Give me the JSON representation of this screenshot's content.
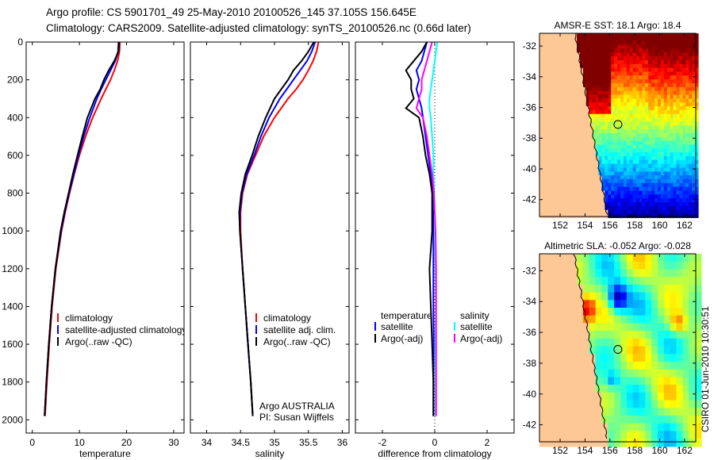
{
  "title_line1": "Argo profile: CS 5901701_49 25-May-2010 20100526_145 37.105S 156.645E",
  "title_line2": "Climatology: CARS2009. Satellite-adjusted climatology: synTS_20100526.nc (0.66d later)",
  "side_stamp": "CSIRO 01-Jun-2010 10:30:51",
  "colors": {
    "climatology": "#ff0000",
    "satellite": "#0000ff",
    "argo": "#000000",
    "sal_satellite": "#00ffff",
    "sal_argo": "#ff00ff",
    "land": "#fdc895"
  },
  "chart_data": [
    {
      "type": "line",
      "name": "temperature-profile",
      "xlabel": "temperature",
      "ylabel": "",
      "xlim": [
        -1.3,
        32.2
      ],
      "ylim": [
        2070,
        0
      ],
      "xticks": [
        0,
        10,
        20,
        30
      ],
      "yticks": [
        0,
        200,
        400,
        600,
        800,
        1000,
        1200,
        1400,
        1600,
        1800,
        2000
      ],
      "depth": [
        0,
        50,
        100,
        150,
        200,
        250,
        300,
        400,
        500,
        600,
        700,
        800,
        900,
        1000,
        1200,
        1400,
        1600,
        1800,
        1980
      ],
      "series": [
        {
          "name": "climatology",
          "color": "#ff0000",
          "values": [
            18.6,
            18.5,
            18.1,
            17.4,
            16.6,
            15.6,
            14.6,
            12.8,
            11.3,
            10.0,
            8.9,
            7.9,
            7.0,
            6.2,
            5.0,
            4.2,
            3.6,
            3.1,
            2.7
          ]
        },
        {
          "name": "satellite-adjusted climatology",
          "color": "#0000ff",
          "values": [
            18.3,
            18.2,
            17.6,
            16.6,
            15.6,
            14.6,
            13.7,
            12.2,
            10.9,
            9.8,
            8.8,
            7.8,
            6.9,
            6.1,
            4.9,
            4.1,
            3.5,
            3.0,
            2.6
          ]
        },
        {
          "name": "Argo(..raw -QC)",
          "color": "#000000",
          "values": [
            18.4,
            18.3,
            17.4,
            16.2,
            15.2,
            14.4,
            13.3,
            11.7,
            10.6,
            9.6,
            8.6,
            7.7,
            6.8,
            6.0,
            4.9,
            4.1,
            3.5,
            3.0,
            2.6
          ]
        }
      ],
      "legend": [
        "climatology",
        "satellite-adjusted climatology",
        "Argo(..raw -QC)"
      ]
    },
    {
      "type": "line",
      "name": "salinity-profile",
      "xlabel": "salinity",
      "xlim": [
        33.76,
        36.1
      ],
      "ylim": [
        2070,
        0
      ],
      "xticks": [
        34,
        34.5,
        35,
        35.5,
        36
      ],
      "depth": [
        0,
        50,
        100,
        150,
        200,
        250,
        300,
        400,
        500,
        600,
        700,
        800,
        900,
        1000,
        1200,
        1400,
        1600,
        1800,
        1980
      ],
      "series": [
        {
          "name": "climatology",
          "color": "#ff0000",
          "values": [
            35.65,
            35.62,
            35.57,
            35.5,
            35.42,
            35.32,
            35.2,
            35.0,
            34.84,
            34.72,
            34.6,
            34.53,
            34.5,
            34.5,
            34.53,
            34.57,
            34.61,
            34.65,
            34.68
          ]
        },
        {
          "name": "satellite adj. clim.",
          "color": "#0000ff",
          "values": [
            35.6,
            35.55,
            35.48,
            35.38,
            35.28,
            35.18,
            35.08,
            34.92,
            34.8,
            34.7,
            34.59,
            34.52,
            34.49,
            34.49,
            34.53,
            34.57,
            34.61,
            34.65,
            34.68
          ]
        },
        {
          "name": "Argo(..raw -QC)",
          "color": "#000000",
          "values": [
            35.58,
            35.5,
            35.4,
            35.28,
            35.2,
            35.1,
            35.0,
            34.87,
            34.76,
            34.67,
            34.57,
            34.51,
            34.48,
            34.49,
            34.53,
            34.57,
            34.61,
            34.65,
            34.68
          ]
        }
      ],
      "legend": [
        "climatology",
        "satellite adj. clim.",
        "Argo(..raw -QC)"
      ],
      "annotation": [
        "Argo AUSTRALIA",
        "PI: Susan Wijffels"
      ]
    },
    {
      "type": "line",
      "name": "difference-profile",
      "xlabel": "difference from climatology",
      "xlim": [
        -3.03,
        3.03
      ],
      "ylim": [
        2070,
        0
      ],
      "xticks": [
        -2,
        0,
        2
      ],
      "zero_line": true,
      "depth": [
        0,
        50,
        100,
        150,
        200,
        250,
        300,
        350,
        400,
        500,
        600,
        700,
        800,
        900,
        1000,
        1200,
        1400,
        1600,
        1800,
        1980
      ],
      "series": [
        {
          "name": "temperature satellite",
          "color": "#0000ff",
          "values": [
            -0.3,
            -0.4,
            -0.5,
            -0.7,
            -0.6,
            -0.7,
            -0.6,
            -0.5,
            -0.45,
            -0.35,
            -0.25,
            -0.15,
            -0.08,
            -0.06,
            -0.05,
            -0.05,
            -0.05,
            -0.04,
            -0.05,
            -0.05
          ]
        },
        {
          "name": "temperature Argo(-adj)",
          "color": "#000000",
          "values": [
            -0.3,
            -0.5,
            -0.8,
            -1.1,
            -0.9,
            -0.9,
            -0.8,
            -1.1,
            -0.6,
            -0.45,
            -0.35,
            -0.2,
            -0.1,
            -0.1,
            -0.1,
            -0.2,
            -0.15,
            -0.1,
            -0.05,
            -0.05
          ]
        },
        {
          "name": "salinity satellite",
          "color": "#00ffff",
          "values": [
            0.1,
            0.05,
            0.0,
            -0.05,
            -0.1,
            -0.15,
            -0.2,
            -0.2,
            -0.15,
            -0.1,
            -0.05,
            -0.05,
            -0.02,
            0.0,
            0.0,
            0.03,
            0.05,
            0.02,
            0.03,
            0.03
          ]
        },
        {
          "name": "salinity Argo(-adj)",
          "color": "#ff00ff",
          "values": [
            -0.1,
            -0.2,
            -0.3,
            -0.4,
            -0.5,
            -0.5,
            -0.6,
            -0.7,
            -0.45,
            -0.3,
            -0.2,
            -0.1,
            -0.03,
            0.0,
            0.03,
            0.05,
            0.05,
            0.05,
            0.05,
            0.05
          ]
        }
      ],
      "legend_groups": [
        {
          "title": "temperature",
          "items": [
            "satellite",
            "Argo(-adj)"
          ]
        },
        {
          "title": "salinity",
          "items": [
            "satellite",
            "Argo(-adj)"
          ]
        }
      ]
    },
    {
      "type": "heatmap",
      "name": "sst-map",
      "title": "AMSR-E SST: 18.1 Argo: 18.4",
      "xlim": [
        150.34,
        162.9
      ],
      "ylim": [
        -43.1,
        -31.17
      ],
      "xticks": [
        152,
        154,
        156,
        158,
        160,
        162
      ],
      "yticks": [
        -32,
        -34,
        -36,
        -38,
        -40,
        -42
      ],
      "marker": {
        "lon": 156.645,
        "lat": -37.105
      }
    },
    {
      "type": "heatmap",
      "name": "sla-map",
      "title": "Altimetric SLA: -0.052 Argo: -0.028",
      "xlim": [
        150.34,
        162.9
      ],
      "ylim": [
        -43.1,
        -30.9
      ],
      "xticks": [
        152,
        154,
        156,
        158,
        160,
        162
      ],
      "yticks": [
        -32,
        -34,
        -36,
        -38,
        -40,
        -42
      ],
      "marker": {
        "lon": 156.645,
        "lat": -37.105
      }
    }
  ]
}
